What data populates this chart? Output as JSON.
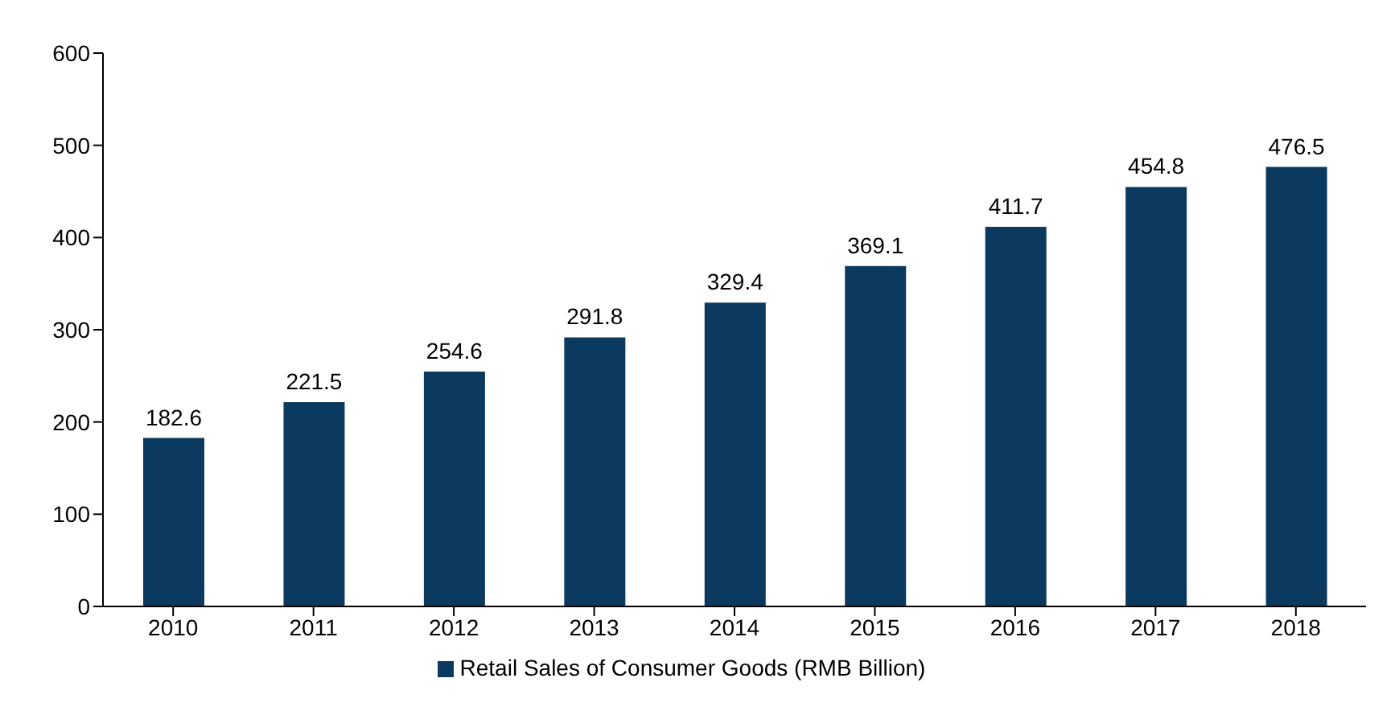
{
  "chart_data": {
    "type": "bar",
    "categories": [
      "2010",
      "2011",
      "2012",
      "2013",
      "2014",
      "2015",
      "2016",
      "2017",
      "2018"
    ],
    "series": [
      {
        "name": "Retail Sales of Consumer Goods (RMB Billion)",
        "color": "#0c3a5f",
        "values": [
          182.6,
          221.5,
          254.6,
          291.8,
          329.4,
          369.1,
          411.7,
          454.8,
          476.5
        ]
      }
    ],
    "ylim": [
      0,
      600
    ],
    "yticks": [
      0,
      100,
      200,
      300,
      400,
      500,
      600
    ],
    "data_labels": true,
    "grid": false,
    "legend": "bottom"
  }
}
